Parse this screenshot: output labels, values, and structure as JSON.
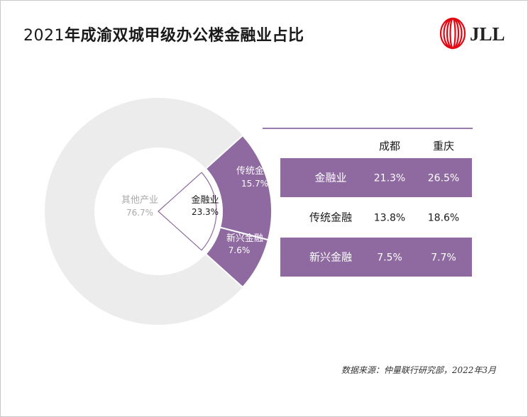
{
  "title": {
    "prefix": "2021",
    "main": "年成渝双城甲级办公楼金融业占比"
  },
  "logo": {
    "text": "JLL",
    "colors": {
      "red": "#e30613",
      "dark": "#222222"
    }
  },
  "footer": "数据来源：仲量联行研究部，2022年3月",
  "colors": {
    "purple": "#8e6aa0",
    "light_gray": "#ececec",
    "gray_label": "#aaaaaa",
    "text_dark": "#1a1a1a",
    "white": "#ffffff"
  },
  "chart_data": [
    {
      "type": "pie",
      "variant": "donut-with-exploded-wedge",
      "slices": [
        {
          "label": "其他产业",
          "display": "76.7%",
          "value": 76.7
        },
        {
          "label": "金融业",
          "display": "23.3%",
          "value": 23.3
        }
      ],
      "breakdown": [
        {
          "label": "传统金融",
          "display": "15.7%",
          "value": 15.7
        },
        {
          "label": "新兴金融",
          "display": "7.6%",
          "value": 7.6
        }
      ]
    },
    {
      "type": "table",
      "columns": [
        "成都",
        "重庆"
      ],
      "rows": [
        {
          "label": "金融业",
          "values": [
            "21.3%",
            "26.5%"
          ],
          "highlight": true
        },
        {
          "label": "传统金融",
          "values": [
            "13.8%",
            "18.6%"
          ],
          "highlight": false
        },
        {
          "label": "新兴金融",
          "values": [
            "7.5%",
            "7.7%"
          ],
          "highlight": true
        }
      ]
    }
  ]
}
